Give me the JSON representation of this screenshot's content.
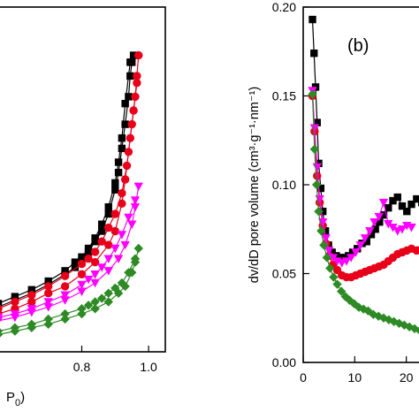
{
  "chart_data": [
    {
      "type": "line",
      "panel_label": "",
      "xlabel_fragment": "P",
      "xlabel_subscript": "0",
      "xlabel_close": ")",
      "xlim": [
        0.55,
        1.05
      ],
      "x_ticks": [
        "0.8",
        "1.0"
      ],
      "x_tick_values": [
        0.8,
        1.0
      ],
      "ylim": [
        0,
        1
      ],
      "series": [
        {
          "color": "#000000",
          "marker": "square",
          "x": [
            0.55,
            0.6,
            0.65,
            0.7,
            0.75,
            0.78,
            0.8,
            0.82,
            0.84,
            0.86,
            0.88,
            0.9,
            0.91,
            0.92,
            0.93,
            0.94,
            0.945,
            0.95,
            0.955
          ],
          "y": [
            0.13,
            0.15,
            0.17,
            0.195,
            0.225,
            0.245,
            0.265,
            0.29,
            0.32,
            0.35,
            0.4,
            0.47,
            0.52,
            0.59,
            0.66,
            0.74,
            0.8,
            0.84,
            0.86
          ],
          "desorb_x": [
            0.945,
            0.93,
            0.92,
            0.91,
            0.9,
            0.88,
            0.86,
            0.84,
            0.82,
            0.8,
            0.78,
            0.75,
            0.7,
            0.65,
            0.6,
            0.55
          ],
          "desorb_y": [
            0.84,
            0.72,
            0.62,
            0.55,
            0.49,
            0.42,
            0.37,
            0.33,
            0.3,
            0.275,
            0.26,
            0.235,
            0.205,
            0.18,
            0.16,
            0.14
          ]
        },
        {
          "color": "#e8001a",
          "marker": "circle",
          "x": [
            0.55,
            0.6,
            0.65,
            0.7,
            0.75,
            0.8,
            0.84,
            0.88,
            0.9,
            0.92,
            0.93,
            0.94,
            0.95,
            0.96,
            0.965,
            0.97
          ],
          "y": [
            0.11,
            0.125,
            0.145,
            0.17,
            0.19,
            0.225,
            0.26,
            0.31,
            0.35,
            0.43,
            0.5,
            0.58,
            0.66,
            0.74,
            0.8,
            0.86
          ],
          "desorb_x": [
            0.965,
            0.955,
            0.945,
            0.935,
            0.92,
            0.9,
            0.88,
            0.86,
            0.84,
            0.82,
            0.8,
            0.75,
            0.7,
            0.65,
            0.6,
            0.55
          ],
          "desorb_y": [
            0.78,
            0.7,
            0.62,
            0.54,
            0.46,
            0.4,
            0.36,
            0.32,
            0.29,
            0.27,
            0.255,
            0.22,
            0.19,
            0.165,
            0.145,
            0.125
          ]
        },
        {
          "color": "#ff00ff",
          "marker": "triangle-down",
          "x": [
            0.55,
            0.6,
            0.65,
            0.7,
            0.75,
            0.8,
            0.84,
            0.88,
            0.91,
            0.93,
            0.95,
            0.96,
            0.97
          ],
          "y": [
            0.09,
            0.1,
            0.115,
            0.13,
            0.15,
            0.175,
            0.2,
            0.235,
            0.27,
            0.31,
            0.37,
            0.42,
            0.48
          ],
          "desorb_x": [
            0.96,
            0.94,
            0.92,
            0.9,
            0.88,
            0.86,
            0.84,
            0.82,
            0.8,
            0.75,
            0.7,
            0.65,
            0.6,
            0.55
          ],
          "desorb_y": [
            0.44,
            0.39,
            0.34,
            0.3,
            0.27,
            0.245,
            0.225,
            0.21,
            0.195,
            0.165,
            0.145,
            0.125,
            0.11,
            0.1
          ]
        },
        {
          "color": "#2d8a24",
          "marker": "diamond",
          "x": [
            0.55,
            0.6,
            0.65,
            0.7,
            0.75,
            0.8,
            0.84,
            0.88,
            0.91,
            0.93,
            0.95,
            0.96,
            0.97
          ],
          "y": [
            0.05,
            0.06,
            0.07,
            0.08,
            0.095,
            0.11,
            0.125,
            0.145,
            0.17,
            0.19,
            0.23,
            0.26,
            0.3
          ],
          "desorb_x": [
            0.96,
            0.94,
            0.92,
            0.9,
            0.88,
            0.86,
            0.84,
            0.82,
            0.8,
            0.75,
            0.7,
            0.65,
            0.6,
            0.55
          ],
          "desorb_y": [
            0.27,
            0.23,
            0.2,
            0.185,
            0.17,
            0.155,
            0.145,
            0.135,
            0.125,
            0.11,
            0.095,
            0.08,
            0.07,
            0.06
          ]
        }
      ]
    },
    {
      "type": "line",
      "panel_label": "(b)",
      "ylabel": "dv/dD pore volume (cm³·g⁻¹·nm⁻¹)",
      "xlim": [
        0,
        24
      ],
      "ylim": [
        0,
        0.2
      ],
      "x_ticks": [
        "0",
        "10",
        "20"
      ],
      "x_tick_values": [
        0,
        10,
        20
      ],
      "y_ticks": [
        "0.00",
        "0.05",
        "0.10",
        "0.15",
        "0.20"
      ],
      "y_tick_values": [
        0,
        0.05,
        0.1,
        0.15,
        0.2
      ],
      "series": [
        {
          "color": "#000000",
          "marker": "square",
          "x": [
            1.8,
            2.1,
            2.4,
            2.7,
            3.0,
            3.4,
            3.8,
            4.3,
            4.9,
            5.6,
            6.4,
            7.2,
            8.0,
            8.8,
            9.6,
            10.5,
            11.4,
            12.3,
            13.2,
            14.0,
            14.8,
            15.6,
            16.5,
            17.4,
            18.3,
            19.2,
            20.1,
            21.0,
            22.0,
            23.0
          ],
          "y": [
            0.193,
            0.174,
            0.155,
            0.135,
            0.112,
            0.098,
            0.085,
            0.074,
            0.066,
            0.062,
            0.06,
            0.059,
            0.059,
            0.06,
            0.062,
            0.064,
            0.067,
            0.068,
            0.072,
            0.075,
            0.079,
            0.083,
            0.087,
            0.091,
            0.093,
            0.088,
            0.085,
            0.089,
            0.092,
            0.09
          ]
        },
        {
          "color": "#e8001a",
          "marker": "circle",
          "x": [
            1.8,
            2.2,
            2.7,
            3.2,
            3.8,
            4.4,
            5.0,
            5.8,
            6.6,
            7.5,
            8.4,
            9.3,
            10.2,
            11.1,
            12.0,
            12.9,
            13.8,
            14.7,
            15.6,
            16.5,
            17.4,
            18.3,
            19.2,
            20.1,
            21.0,
            22.0,
            23.0
          ],
          "y": [
            0.15,
            0.13,
            0.105,
            0.09,
            0.077,
            0.067,
            0.06,
            0.055,
            0.052,
            0.049,
            0.048,
            0.048,
            0.049,
            0.05,
            0.051,
            0.052,
            0.053,
            0.054,
            0.055,
            0.057,
            0.059,
            0.061,
            0.062,
            0.063,
            0.064,
            0.063,
            0.064
          ]
        },
        {
          "color": "#ff00ff",
          "marker": "triangle-down",
          "x": [
            1.8,
            2.2,
            2.7,
            3.2,
            3.8,
            4.4,
            5.0,
            5.8,
            6.6,
            7.5,
            8.4,
            9.3,
            10.2,
            11.1,
            12.0,
            12.9,
            13.8,
            14.7,
            15.6,
            16.5,
            17.4,
            18.3,
            19.2,
            20.1,
            21.0
          ],
          "y": [
            0.153,
            0.132,
            0.11,
            0.092,
            0.079,
            0.07,
            0.063,
            0.059,
            0.057,
            0.056,
            0.057,
            0.059,
            0.062,
            0.066,
            0.07,
            0.074,
            0.079,
            0.082,
            0.09,
            0.078,
            0.076,
            0.074,
            0.075,
            0.077,
            0.076
          ]
        },
        {
          "color": "#2d8a24",
          "marker": "diamond",
          "x": [
            1.8,
            2.2,
            2.6,
            3.0,
            3.5,
            4.0,
            4.6,
            5.2,
            5.9,
            6.6,
            7.4,
            8.2,
            9.0,
            9.9,
            10.8,
            11.7,
            12.6,
            13.6,
            14.6,
            15.6,
            16.6,
            17.6,
            18.6,
            19.6,
            20.6,
            21.6,
            22.6,
            23.6
          ],
          "y": [
            0.151,
            0.12,
            0.1,
            0.085,
            0.074,
            0.066,
            0.059,
            0.053,
            0.048,
            0.044,
            0.04,
            0.037,
            0.035,
            0.033,
            0.031,
            0.03,
            0.029,
            0.027,
            0.026,
            0.025,
            0.024,
            0.023,
            0.022,
            0.021,
            0.02,
            0.019,
            0.018,
            0.017
          ]
        }
      ]
    }
  ]
}
